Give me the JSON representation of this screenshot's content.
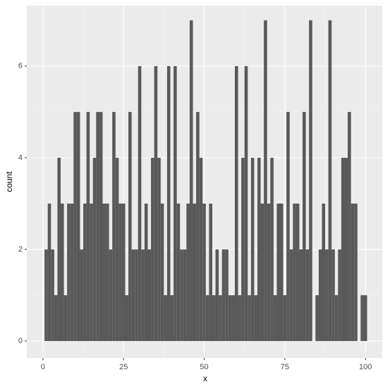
{
  "chart_data": {
    "type": "histogram",
    "x_label": "x",
    "y_label": "count",
    "color": "#595959",
    "grid": true,
    "bins": [
      0.5,
      1.5,
      2.5,
      3.5,
      4.5,
      5.5,
      6.5,
      7.5,
      8.5,
      9.5,
      10.5,
      11.5,
      12.5,
      13.5,
      14.5,
      15.5,
      16.5,
      17.5,
      18.5,
      19.5,
      20.5,
      21.5,
      22.5,
      23.5,
      24.5,
      25.5,
      26.5,
      27.5,
      28.5,
      29.5,
      30.5,
      31.5,
      32.5,
      33.5,
      34.5,
      35.5,
      36.5,
      37.5,
      38.5,
      39.5,
      40.5,
      41.5,
      42.5,
      43.5,
      44.5,
      45.5,
      46.5,
      47.5,
      48.5,
      49.5,
      50.5,
      51.5,
      52.5,
      53.5,
      54.5,
      55.5,
      56.5,
      57.5,
      58.5,
      59.5,
      60.5,
      61.5,
      62.5,
      63.5,
      64.5,
      65.5,
      66.5,
      67.5,
      68.5,
      69.5,
      70.5,
      71.5,
      72.5,
      73.5,
      74.5,
      75.5,
      76.5,
      77.5,
      78.5,
      79.5,
      80.5,
      81.5,
      82.5,
      83.5,
      84.5,
      85.5,
      86.5,
      87.5,
      88.5,
      89.5,
      90.5,
      91.5,
      92.5,
      93.5,
      94.5,
      95.5,
      96.5,
      97.5,
      98.5,
      99.5,
      100.5
    ],
    "values": [
      2,
      3,
      2,
      1,
      4,
      3,
      1,
      3,
      3,
      5,
      5,
      2,
      3,
      5,
      3,
      4,
      5,
      5,
      3,
      3,
      2,
      5,
      4,
      3,
      3,
      1,
      5,
      2,
      2,
      6,
      2,
      3,
      2,
      4,
      6,
      4,
      3,
      1,
      6,
      1,
      6,
      3,
      2,
      2,
      3,
      7,
      3,
      5,
      4,
      3,
      1,
      3,
      1,
      2,
      1,
      2,
      2,
      1,
      1,
      6,
      1,
      4,
      6,
      1,
      4,
      1,
      4,
      3,
      7,
      3,
      4,
      1,
      3,
      3,
      1,
      5,
      2,
      3,
      3,
      2,
      5,
      2,
      7,
      0,
      1,
      2,
      3,
      2,
      7,
      2,
      1,
      2,
      4,
      4,
      5,
      3,
      3,
      0,
      1,
      1
    ],
    "xlim": [
      -5,
      105.2
    ],
    "ylim": [
      -0.37,
      7.32
    ],
    "xticks": [
      0,
      25,
      50,
      75,
      100
    ],
    "yticks": [
      0,
      2,
      4,
      6
    ]
  }
}
